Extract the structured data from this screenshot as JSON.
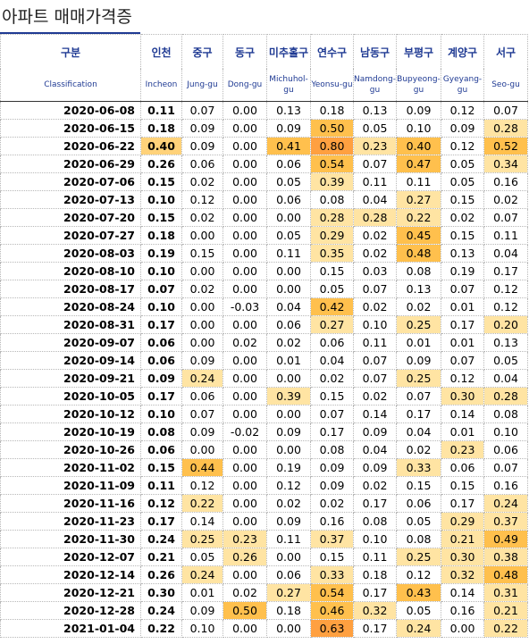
{
  "title": "아파트 매매가격증",
  "table": {
    "header_ko": [
      "구분",
      "인천",
      "중구",
      "동구",
      "미추홀구",
      "연수구",
      "남동구",
      "부평구",
      "계양구",
      "서구"
    ],
    "header_en": [
      "Classification",
      "Incheon",
      "Jung-gu",
      "Dong-gu",
      "Michuhol-gu",
      "Yeonsu-gu",
      "Namdong-gu",
      "Bupyeong-gu",
      "Gyeyang-gu",
      "Seo-gu"
    ],
    "rows": [
      [
        "2020-06-08",
        "0.11",
        "0.07",
        "0.00",
        "0.13",
        "0.18",
        "0.13",
        "0.09",
        "0.12",
        "0.07"
      ],
      [
        "2020-06-15",
        "0.18",
        "0.09",
        "0.00",
        "0.09",
        "0.50",
        "0.05",
        "0.10",
        "0.09",
        "0.28"
      ],
      [
        "2020-06-22",
        "0.40",
        "0.09",
        "0.00",
        "0.41",
        "0.80",
        "0.23",
        "0.40",
        "0.12",
        "0.52"
      ],
      [
        "2020-06-29",
        "0.26",
        "0.06",
        "0.00",
        "0.06",
        "0.54",
        "0.07",
        "0.47",
        "0.05",
        "0.34"
      ],
      [
        "2020-07-06",
        "0.15",
        "0.02",
        "0.00",
        "0.05",
        "0.39",
        "0.11",
        "0.11",
        "0.05",
        "0.16"
      ],
      [
        "2020-07-13",
        "0.10",
        "0.12",
        "0.00",
        "0.06",
        "0.08",
        "0.04",
        "0.27",
        "0.15",
        "0.02"
      ],
      [
        "2020-07-20",
        "0.15",
        "0.02",
        "0.00",
        "0.00",
        "0.28",
        "0.28",
        "0.22",
        "0.02",
        "0.07"
      ],
      [
        "2020-07-27",
        "0.18",
        "0.00",
        "0.00",
        "0.05",
        "0.29",
        "0.02",
        "0.45",
        "0.15",
        "0.11"
      ],
      [
        "2020-08-03",
        "0.19",
        "0.15",
        "0.00",
        "0.11",
        "0.35",
        "0.02",
        "0.48",
        "0.13",
        "0.04"
      ],
      [
        "2020-08-10",
        "0.10",
        "0.00",
        "0.00",
        "0.00",
        "0.15",
        "0.03",
        "0.08",
        "0.19",
        "0.17"
      ],
      [
        "2020-08-17",
        "0.07",
        "0.02",
        "0.00",
        "0.00",
        "0.05",
        "0.07",
        "0.13",
        "0.07",
        "0.12"
      ],
      [
        "2020-08-24",
        "0.10",
        "0.00",
        "-0.03",
        "0.04",
        "0.42",
        "0.02",
        "0.02",
        "0.01",
        "0.12"
      ],
      [
        "2020-08-31",
        "0.17",
        "0.00",
        "0.00",
        "0.06",
        "0.27",
        "0.10",
        "0.25",
        "0.17",
        "0.20"
      ],
      [
        "2020-09-07",
        "0.06",
        "0.00",
        "0.02",
        "0.02",
        "0.06",
        "0.11",
        "0.01",
        "0.01",
        "0.13"
      ],
      [
        "2020-09-14",
        "0.06",
        "0.09",
        "0.00",
        "0.01",
        "0.04",
        "0.07",
        "0.09",
        "0.07",
        "0.05"
      ],
      [
        "2020-09-21",
        "0.09",
        "0.24",
        "0.00",
        "0.00",
        "0.02",
        "0.07",
        "0.25",
        "0.12",
        "0.04"
      ],
      [
        "2020-10-05",
        "0.17",
        "0.06",
        "0.00",
        "0.39",
        "0.15",
        "0.02",
        "0.07",
        "0.30",
        "0.28"
      ],
      [
        "2020-10-12",
        "0.10",
        "0.07",
        "0.00",
        "0.00",
        "0.07",
        "0.14",
        "0.17",
        "0.14",
        "0.08"
      ],
      [
        "2020-10-19",
        "0.08",
        "0.09",
        "-0.02",
        "0.09",
        "0.17",
        "0.09",
        "0.04",
        "0.01",
        "0.10"
      ],
      [
        "2020-10-26",
        "0.06",
        "0.00",
        "0.00",
        "0.00",
        "0.08",
        "0.04",
        "0.02",
        "0.23",
        "0.06"
      ],
      [
        "2020-11-02",
        "0.15",
        "0.44",
        "0.00",
        "0.19",
        "0.09",
        "0.09",
        "0.33",
        "0.06",
        "0.07"
      ],
      [
        "2020-11-09",
        "0.11",
        "0.12",
        "0.00",
        "0.12",
        "0.09",
        "0.02",
        "0.15",
        "0.15",
        "0.16"
      ],
      [
        "2020-11-16",
        "0.12",
        "0.22",
        "0.00",
        "0.02",
        "0.02",
        "0.17",
        "0.06",
        "0.17",
        "0.24"
      ],
      [
        "2020-11-23",
        "0.17",
        "0.14",
        "0.00",
        "0.09",
        "0.16",
        "0.08",
        "0.05",
        "0.29",
        "0.37"
      ],
      [
        "2020-11-30",
        "0.24",
        "0.25",
        "0.23",
        "0.11",
        "0.37",
        "0.10",
        "0.08",
        "0.21",
        "0.49"
      ],
      [
        "2020-12-07",
        "0.21",
        "0.05",
        "0.26",
        "0.00",
        "0.15",
        "0.11",
        "0.25",
        "0.30",
        "0.38"
      ],
      [
        "2020-12-14",
        "0.26",
        "0.24",
        "0.00",
        "0.06",
        "0.33",
        "0.18",
        "0.12",
        "0.32",
        "0.48"
      ],
      [
        "2020-12-21",
        "0.30",
        "0.01",
        "0.02",
        "0.27",
        "0.54",
        "0.17",
        "0.43",
        "0.14",
        "0.31"
      ],
      [
        "2020-12-28",
        "0.24",
        "0.09",
        "0.50",
        "0.18",
        "0.46",
        "0.32",
        "0.05",
        "0.16",
        "0.21"
      ],
      [
        "2021-01-04",
        "0.22",
        "0.10",
        "0.00",
        "0.00",
        "0.63",
        "0.17",
        "0.24",
        "0.00",
        "0.22"
      ]
    ]
  }
}
